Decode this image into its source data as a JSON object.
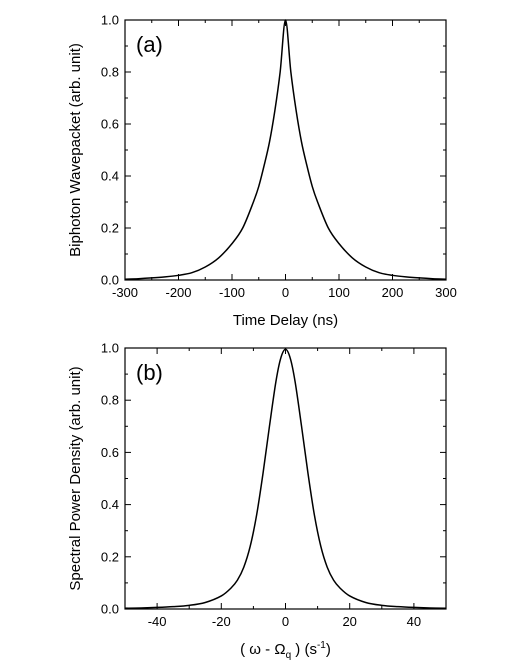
{
  "chart_data": [
    {
      "type": "line",
      "panel_label": "(a)",
      "xlabel": "Time Delay (ns)",
      "ylabel": "Biphoton Wavepacket (arb. unit)",
      "xlim": [
        -300,
        300
      ],
      "ylim": [
        0,
        1.0
      ],
      "x_ticks": [
        -300,
        -200,
        -100,
        0,
        100,
        200,
        300
      ],
      "y_ticks": [
        0.0,
        0.2,
        0.4,
        0.6,
        0.8,
        1.0
      ],
      "x_tick_labels": [
        "-300",
        "-200",
        "-100",
        "0",
        "100",
        "200",
        "300"
      ],
      "y_tick_labels": [
        "0.0",
        "0.2",
        "0.4",
        "0.6",
        "0.8",
        "1.0"
      ],
      "grid": false,
      "legend": "none",
      "series": [
        {
          "color": "#000000",
          "x": [
            -300,
            -275,
            -250,
            -225,
            -200,
            -175,
            -150,
            -125,
            -100,
            -80,
            -60,
            -50,
            -40,
            -30,
            -20,
            -10,
            0,
            10,
            20,
            30,
            40,
            50,
            60,
            80,
            100,
            125,
            150,
            175,
            200,
            225,
            250,
            275,
            300
          ],
          "y": [
            0.003,
            0.005,
            0.008,
            0.012,
            0.018,
            0.028,
            0.05,
            0.085,
            0.14,
            0.2,
            0.3,
            0.36,
            0.44,
            0.53,
            0.65,
            0.8,
            1.0,
            0.8,
            0.65,
            0.53,
            0.44,
            0.36,
            0.3,
            0.2,
            0.14,
            0.085,
            0.05,
            0.028,
            0.018,
            0.012,
            0.008,
            0.005,
            0.003
          ]
        }
      ]
    },
    {
      "type": "line",
      "panel_label": "(b)",
      "xlabel": "( ω - Ω",
      "xlabel_sub": "q",
      "xlabel_tail": " ) (s",
      "xlabel_sup": "-1",
      "xlabel_end": ")",
      "ylabel": "Spectral Power Density (arb. unit)",
      "xlim": [
        -50,
        50
      ],
      "ylim": [
        0,
        1.0
      ],
      "x_ticks": [
        -40,
        -20,
        0,
        20,
        40
      ],
      "y_ticks": [
        0.0,
        0.2,
        0.4,
        0.6,
        0.8,
        1.0
      ],
      "x_tick_labels": [
        "-40",
        "-20",
        "0",
        "20",
        "40"
      ],
      "y_tick_labels": [
        "0.0",
        "0.2",
        "0.4",
        "0.6",
        "0.8",
        "1.0"
      ],
      "grid": false,
      "legend": "none",
      "series": [
        {
          "color": "#000000",
          "x": [
            -50,
            -45,
            -40,
            -35,
            -30,
            -25,
            -20,
            -17,
            -15,
            -13,
            -11,
            -9,
            -7,
            -5,
            -3,
            -1.5,
            0,
            1.5,
            3,
            5,
            7,
            9,
            11,
            13,
            15,
            17,
            20,
            25,
            30,
            35,
            40,
            45,
            50
          ],
          "y": [
            0.003,
            0.004,
            0.006,
            0.009,
            0.014,
            0.025,
            0.05,
            0.08,
            0.11,
            0.16,
            0.24,
            0.36,
            0.52,
            0.7,
            0.87,
            0.96,
            0.995,
            0.96,
            0.87,
            0.7,
            0.52,
            0.36,
            0.24,
            0.16,
            0.11,
            0.08,
            0.05,
            0.025,
            0.014,
            0.009,
            0.006,
            0.004,
            0.003
          ]
        }
      ]
    }
  ]
}
